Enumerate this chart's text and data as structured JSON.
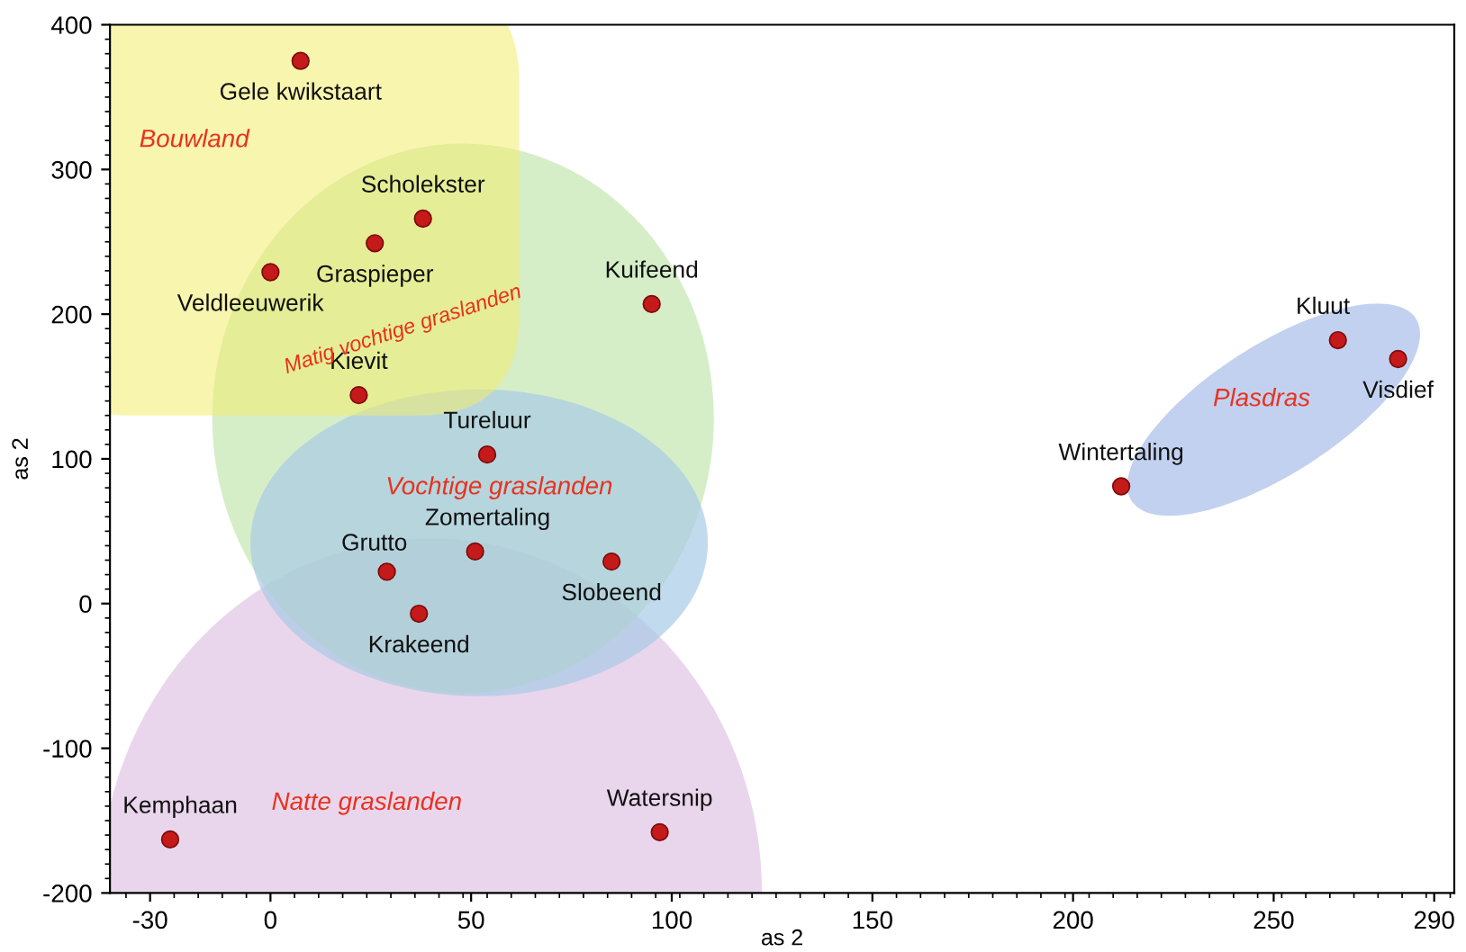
{
  "chart_data": {
    "type": "scatter",
    "xlabel": "as 2",
    "ylabel": "as 2",
    "x": [
      7.5,
      38,
      26,
      0,
      95,
      22,
      54,
      212,
      266,
      281,
      51,
      85,
      29,
      37,
      -25,
      97
    ],
    "values": [
      375,
      266,
      249,
      229,
      207,
      144,
      103,
      81,
      182,
      169,
      36,
      29,
      22,
      -7,
      -163,
      -158
    ],
    "color": "#c41a1a",
    "marker": "circle",
    "xlim": [
      -40,
      295
    ],
    "ylim": [
      -200,
      400
    ],
    "xticks": [
      -30,
      0,
      50,
      100,
      150,
      200,
      250,
      290
    ],
    "yticks": [
      -200,
      -100,
      0,
      100,
      200,
      300,
      400
    ],
    "grid": false,
    "legend": false,
    "annotations": [
      {
        "text": "Gele kwikstaart",
        "x": 7.5,
        "y": 375
      },
      {
        "text": "Scholekster",
        "x": 38,
        "y": 266
      },
      {
        "text": "Graspieper",
        "x": 26,
        "y": 249
      },
      {
        "text": "Veldleeuwerik",
        "x": 0,
        "y": 229
      },
      {
        "text": "Kuifeend",
        "x": 95,
        "y": 207
      },
      {
        "text": "Kievit",
        "x": 22,
        "y": 144
      },
      {
        "text": "Tureluur",
        "x": 54,
        "y": 103
      },
      {
        "text": "Wintertaling",
        "x": 212,
        "y": 81
      },
      {
        "text": "Kluut",
        "x": 266,
        "y": 182
      },
      {
        "text": "Visdief",
        "x": 281,
        "y": 169
      },
      {
        "text": "Zomertaling",
        "x": 51,
        "y": 36
      },
      {
        "text": "Slobeend",
        "x": 85,
        "y": 29
      },
      {
        "text": "Grutto",
        "x": 29,
        "y": 22
      },
      {
        "text": "Krakeend",
        "x": 37,
        "y": -7
      },
      {
        "text": "Kemphaan",
        "x": -25,
        "y": -163
      },
      {
        "text": "Watersnip",
        "x": 97,
        "y": -158
      },
      "Bouwland",
      "Matig vochtige graslanden",
      "Vochtige graslanden",
      "Natte graslanden",
      "Plasdras"
    ]
  }
}
